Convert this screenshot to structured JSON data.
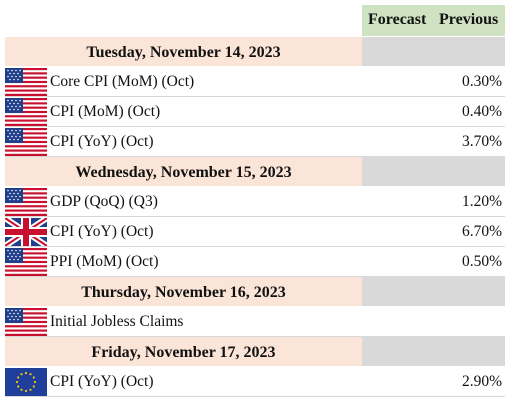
{
  "header": {
    "forecast_label": "Forecast",
    "previous_label": "Previous"
  },
  "days": [
    {
      "date": "Tuesday, November 14, 2023",
      "events": [
        {
          "flag": "us-flag-icon",
          "name": "Core CPI (MoM) (Oct)",
          "forecast": "",
          "previous": "0.30%"
        },
        {
          "flag": "us-flag-icon",
          "name": "CPI (MoM) (Oct)",
          "forecast": "",
          "previous": "0.40%"
        },
        {
          "flag": "us-flag-icon",
          "name": "CPI (YoY) (Oct)",
          "forecast": "",
          "previous": "3.70%"
        }
      ]
    },
    {
      "date": "Wednesday, November 15, 2023",
      "events": [
        {
          "flag": "us-flag-icon",
          "name": "GDP (QoQ) (Q3)",
          "forecast": "",
          "previous": "1.20%"
        },
        {
          "flag": "uk-flag-icon",
          "name": "CPI (YoY) (Oct)",
          "forecast": "",
          "previous": "6.70%"
        },
        {
          "flag": "us-flag-icon",
          "name": "PPI (MoM) (Oct)",
          "forecast": "",
          "previous": "0.50%"
        }
      ]
    },
    {
      "date": "Thursday, November 16, 2023",
      "events": [
        {
          "flag": "us-flag-icon",
          "name": "Initial Jobless Claims",
          "forecast": "",
          "previous": ""
        }
      ]
    },
    {
      "date": "Friday, November 17, 2023",
      "events": [
        {
          "flag": "eu-flag-icon",
          "name": "CPI (YoY) (Oct)",
          "forecast": "",
          "previous": "2.90%"
        }
      ]
    }
  ],
  "colors": {
    "header_green": "#cfe3c2",
    "day_band": "#fbe5d8",
    "gray_cell": "#d9d9d9"
  }
}
